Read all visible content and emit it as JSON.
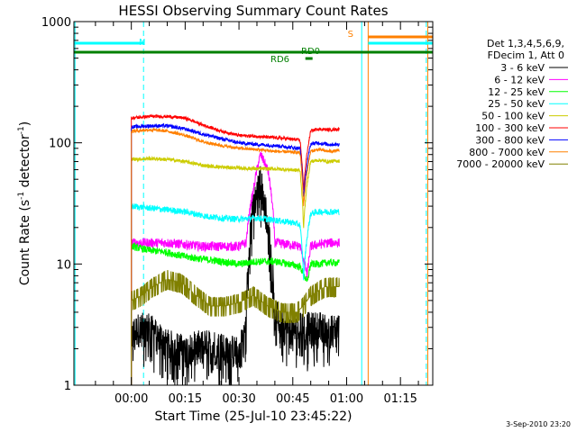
{
  "chart_data": {
    "type": "line",
    "title": "HESSI Observing Summary Count Rates",
    "xlabel": "Start Time (25-Jul-10 23:45:22)",
    "ylabel_main": "Count Rate (s",
    "ylabel_sup1": "-1",
    "ylabel_mid": " detector",
    "ylabel_sup2": "-1",
    "ylabel_end": ")",
    "yscale": "log",
    "ylim": [
      1,
      1000
    ],
    "xlim_minutes": [
      -16,
      84
    ],
    "x_ticks": [
      {
        "m": 0,
        "label": "00:00"
      },
      {
        "m": 15,
        "label": "00:15"
      },
      {
        "m": 30,
        "label": "00:30"
      },
      {
        "m": 45,
        "label": "00:45"
      },
      {
        "m": 60,
        "label": "01:00"
      },
      {
        "m": 75,
        "label": "01:15"
      }
    ],
    "y_ticks": [
      {
        "v": 1,
        "label": "1"
      },
      {
        "v": 10,
        "label": "10"
      },
      {
        "v": 100,
        "label": "100"
      },
      {
        "v": 1000,
        "label": "1000"
      }
    ],
    "legend_header": [
      "Det 1,3,4,5,6,9,",
      "FDecim 1, Att 0"
    ],
    "legend_placement": "right",
    "series": [
      {
        "name": "3 - 6 keV",
        "color": "#000000",
        "t": [
          0,
          2,
          5,
          10,
          15,
          20,
          25,
          30,
          32,
          34,
          36,
          38,
          40,
          42,
          44,
          46,
          48,
          50,
          52,
          55,
          58
        ],
        "v": [
          2.6,
          3.0,
          3.0,
          2.2,
          2.0,
          2.2,
          2.1,
          1.9,
          3.0,
          30,
          50,
          20,
          4.0,
          3.2,
          2.9,
          2.8,
          3.2,
          3.0,
          3.1,
          2.9,
          3.0
        ]
      },
      {
        "name": "6 - 12 keV",
        "color": "#ff00ff",
        "t": [
          0,
          5,
          10,
          15,
          20,
          25,
          30,
          32,
          34,
          36,
          38,
          40,
          44,
          47,
          49,
          50,
          52,
          55,
          58
        ],
        "v": [
          15,
          15,
          15,
          14.5,
          14,
          14,
          14,
          15,
          40,
          80,
          60,
          15,
          14.5,
          14,
          8,
          14,
          14.5,
          15,
          15
        ]
      },
      {
        "name": "12 - 25 keV",
        "color": "#00ff00",
        "t": [
          0,
          5,
          10,
          15,
          20,
          25,
          30,
          35,
          40,
          44,
          47,
          49,
          50,
          52,
          55,
          58
        ],
        "v": [
          14,
          13,
          12.5,
          11.5,
          11,
          10.5,
          10,
          10.5,
          10.5,
          10,
          9.5,
          7,
          10,
          10,
          10.3,
          10.2
        ]
      },
      {
        "name": "25 - 50 keV",
        "color": "#00ffff",
        "t": [
          0,
          5,
          10,
          15,
          20,
          25,
          30,
          35,
          40,
          45,
          47,
          48,
          50,
          52,
          55,
          58
        ],
        "v": [
          30,
          29,
          28,
          27,
          25,
          24,
          23.5,
          24,
          23,
          22,
          21,
          7.5,
          26,
          27,
          27,
          27
        ]
      },
      {
        "name": "50 - 100 keV",
        "color": "#cccc00",
        "t": [
          0,
          5,
          10,
          15,
          20,
          25,
          30,
          35,
          40,
          44,
          47,
          48,
          50,
          52,
          55,
          58
        ],
        "v": [
          73,
          74,
          73,
          70,
          65,
          63,
          62,
          61,
          61,
          60,
          59,
          20,
          70,
          72,
          70,
          71
        ]
      },
      {
        "name": "100 - 300 keV",
        "color": "#ff0000",
        "t": [
          0,
          5,
          10,
          15,
          20,
          25,
          30,
          35,
          40,
          44,
          47,
          48,
          50,
          52,
          55,
          58
        ],
        "v": [
          160,
          165,
          165,
          160,
          140,
          125,
          115,
          113,
          110,
          108,
          105,
          40,
          125,
          130,
          128,
          130
        ]
      },
      {
        "name": "300 - 800 keV",
        "color": "#0000ff",
        "t": [
          0,
          5,
          10,
          15,
          20,
          25,
          30,
          35,
          40,
          44,
          47,
          48,
          50,
          52,
          55,
          58
        ],
        "v": [
          135,
          138,
          138,
          130,
          118,
          108,
          100,
          97,
          95,
          92,
          90,
          35,
          98,
          100,
          97,
          97
        ]
      },
      {
        "name": "800 - 7000 keV",
        "color": "#ff8000",
        "t": [
          0,
          5,
          10,
          15,
          20,
          25,
          30,
          35,
          40,
          44,
          47,
          48,
          50,
          52,
          55,
          58
        ],
        "v": [
          125,
          128,
          125,
          115,
          102,
          95,
          90,
          88,
          85,
          84,
          83,
          30,
          85,
          88,
          85,
          86
        ]
      },
      {
        "name": "7000 - 20000 keV",
        "color": "#808000",
        "t": [
          0,
          3,
          6,
          10,
          14,
          18,
          22,
          26,
          30,
          34,
          38,
          42,
          46,
          48,
          50,
          52,
          54,
          56,
          58
        ],
        "v": [
          5,
          5.5,
          6.5,
          7.5,
          7,
          5.5,
          4.5,
          4.5,
          4.8,
          5.5,
          4.5,
          4.0,
          4.0,
          4.5,
          5.5,
          6,
          6.5,
          6.5,
          6.5
        ]
      }
    ],
    "annotations": [
      {
        "text": "N",
        "color": "#00ffff"
      },
      {
        "text": "S",
        "color": "#ff8000"
      },
      {
        "text": "RD0",
        "color": "#008000"
      },
      {
        "text": "RD6",
        "color": "#008000"
      }
    ],
    "timestamp": "3-Sep-2010 23:20"
  }
}
